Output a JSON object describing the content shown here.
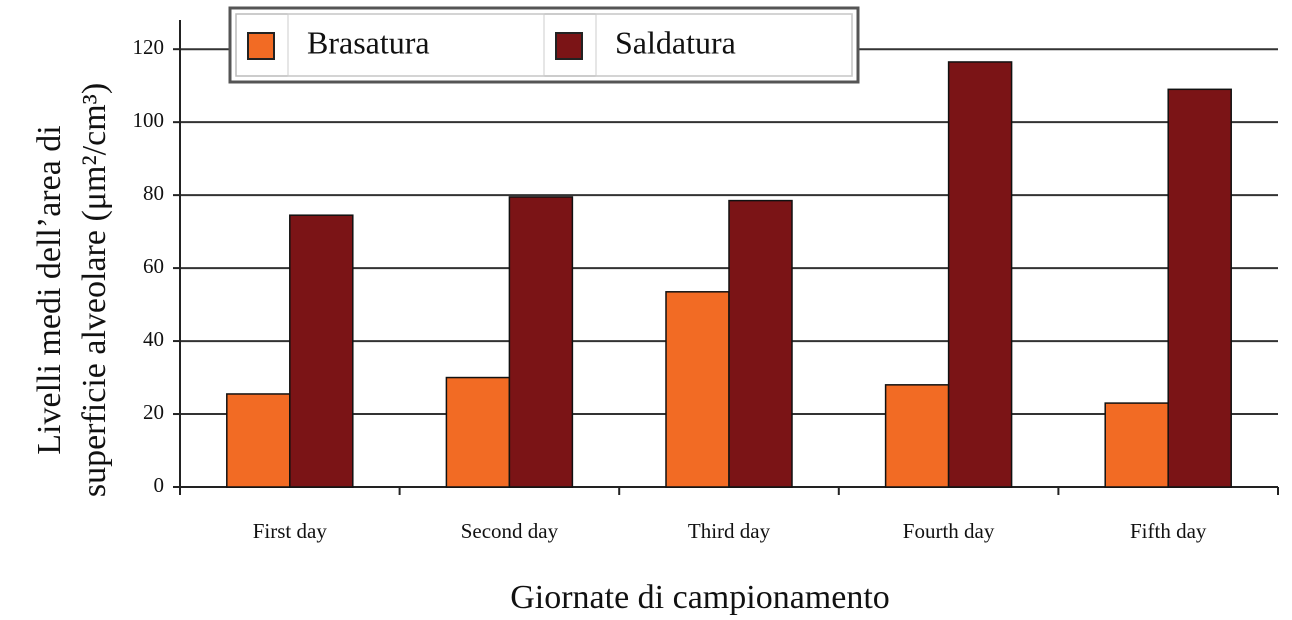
{
  "chart_data": {
    "type": "bar",
    "x_label": "Giornate di campionamento",
    "y_label": [
      "Livelli medi dell’area di",
      "superficie alveolare (μm²/cm³)"
    ],
    "categories": [
      "First day",
      "Second day",
      "Third day",
      "Fourth day",
      "Fifth day"
    ],
    "series": [
      {
        "name": "Brasatura",
        "color": "#f26b24",
        "values": [
          25.5,
          30,
          53.5,
          28,
          23
        ]
      },
      {
        "name": "Saldatura",
        "color": "#7b1416",
        "values": [
          74.5,
          79.5,
          78.5,
          116.5,
          109
        ]
      }
    ],
    "ylim": [
      0,
      128
    ],
    "yticks": [
      0,
      20,
      40,
      60,
      80,
      100,
      120
    ],
    "grid": true,
    "legend": "top-left"
  }
}
